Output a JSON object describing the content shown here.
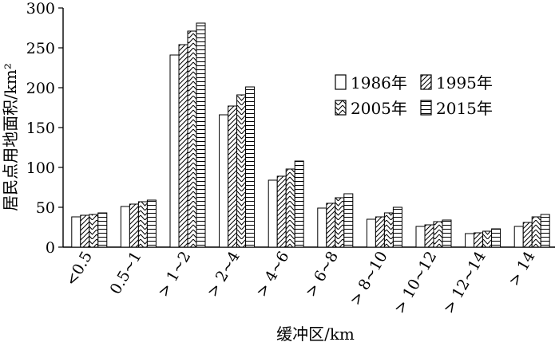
{
  "chart_data": {
    "type": "bar",
    "title": "",
    "xlabel": "缓冲区/km",
    "ylabel": "居民点用地面积/km²",
    "ylim": [
      0,
      300
    ],
    "yticks": [
      0,
      50,
      100,
      150,
      200,
      250,
      300
    ],
    "grid": false,
    "legend_position": "top-right",
    "categories": [
      "<0.5",
      "0.5~1",
      "> 1~2",
      "> 2~4",
      "> 4~6",
      "> 6~8",
      "> 8~10",
      "> 10~12",
      "> 12~14",
      "> 14"
    ],
    "series": [
      {
        "name": "1986年",
        "pattern": "none",
        "values": [
          38,
          51,
          241,
          166,
          84,
          49,
          35,
          26,
          17,
          26
        ]
      },
      {
        "name": "1995年",
        "pattern": "diagonal-right",
        "values": [
          40,
          54,
          254,
          177,
          89,
          55,
          38,
          28,
          18,
          31
        ]
      },
      {
        "name": "2005年",
        "pattern": "chevron",
        "values": [
          41,
          57,
          271,
          191,
          98,
          62,
          43,
          32,
          20,
          38
        ]
      },
      {
        "name": "2015年",
        "pattern": "horizontal",
        "values": [
          43,
          59,
          281,
          201,
          108,
          67,
          50,
          34,
          23,
          41
        ]
      }
    ],
    "colors": {
      "bar_fill": "#ffffff",
      "stroke": "#000000"
    }
  }
}
